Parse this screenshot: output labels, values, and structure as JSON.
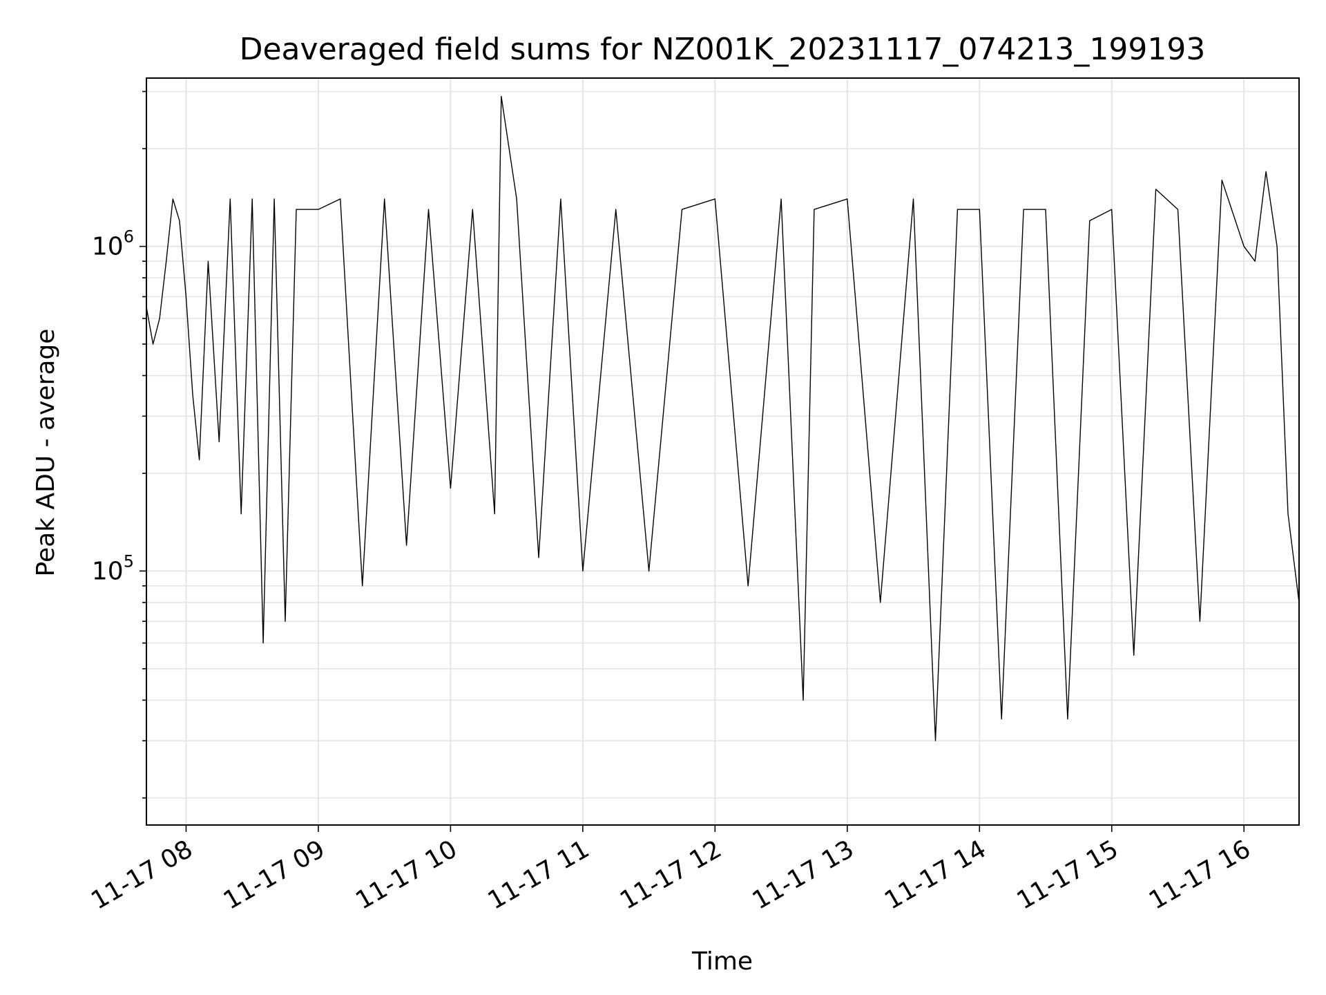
{
  "chart_data": {
    "type": "line",
    "title": "Deaveraged field sums for NZ001K_20231117_074213_199193",
    "xlabel": "Time",
    "ylabel": "Peak ADU - average",
    "x_range": [
      "2023-11-17 07:42",
      "2023-11-17 16:25"
    ],
    "ylim": [
      16500,
      3300000
    ],
    "y_scale": "log",
    "grid": true,
    "series_color": "#000000",
    "x_ticks": [
      {
        "value": "2023-11-17 08:00",
        "label": "11-17 08"
      },
      {
        "value": "2023-11-17 09:00",
        "label": "11-17 09"
      },
      {
        "value": "2023-11-17 10:00",
        "label": "11-17 10"
      },
      {
        "value": "2023-11-17 11:00",
        "label": "11-17 11"
      },
      {
        "value": "2023-11-17 12:00",
        "label": "11-17 12"
      },
      {
        "value": "2023-11-17 13:00",
        "label": "11-17 13"
      },
      {
        "value": "2023-11-17 14:00",
        "label": "11-17 14"
      },
      {
        "value": "2023-11-17 15:00",
        "label": "11-17 15"
      },
      {
        "value": "2023-11-17 16:00",
        "label": "11-17 16"
      }
    ],
    "y_ticks": [
      {
        "value": 100000,
        "base": "10",
        "exp": "5"
      },
      {
        "value": 1000000,
        "base": "10",
        "exp": "6"
      }
    ],
    "series": [
      {
        "x": [
          "2023-11-17 07:42",
          "2023-11-17 07:45",
          "2023-11-17 07:48",
          "2023-11-17 07:51",
          "2023-11-17 07:54",
          "2023-11-17 07:57",
          "2023-11-17 08:00",
          "2023-11-17 08:03",
          "2023-11-17 08:06",
          "2023-11-17 08:10",
          "2023-11-17 08:15",
          "2023-11-17 08:20",
          "2023-11-17 08:25",
          "2023-11-17 08:30",
          "2023-11-17 08:35",
          "2023-11-17 08:40",
          "2023-11-17 08:45",
          "2023-11-17 08:50",
          "2023-11-17 09:00",
          "2023-11-17 09:10",
          "2023-11-17 09:20",
          "2023-11-17 09:30",
          "2023-11-17 09:40",
          "2023-11-17 09:50",
          "2023-11-17 10:00",
          "2023-11-17 10:10",
          "2023-11-17 10:20",
          "2023-11-17 10:23",
          "2023-11-17 10:30",
          "2023-11-17 10:40",
          "2023-11-17 10:50",
          "2023-11-17 11:00",
          "2023-11-17 11:15",
          "2023-11-17 11:30",
          "2023-11-17 11:45",
          "2023-11-17 12:00",
          "2023-11-17 12:15",
          "2023-11-17 12:30",
          "2023-11-17 12:40",
          "2023-11-17 12:45",
          "2023-11-17 13:00",
          "2023-11-17 13:15",
          "2023-11-17 13:30",
          "2023-11-17 13:40",
          "2023-11-17 13:50",
          "2023-11-17 14:00",
          "2023-11-17 14:10",
          "2023-11-17 14:20",
          "2023-11-17 14:30",
          "2023-11-17 14:40",
          "2023-11-17 14:50",
          "2023-11-17 15:00",
          "2023-11-17 15:10",
          "2023-11-17 15:20",
          "2023-11-17 15:30",
          "2023-11-17 15:40",
          "2023-11-17 15:50",
          "2023-11-17 16:00",
          "2023-11-17 16:05",
          "2023-11-17 16:10",
          "2023-11-17 16:15",
          "2023-11-17 16:20",
          "2023-11-17 16:25"
        ],
        "y": [
          650000,
          500000,
          600000,
          900000,
          1400000,
          1200000,
          700000,
          350000,
          220000,
          900000,
          250000,
          1400000,
          150000,
          1400000,
          60000,
          1400000,
          70000,
          1300000,
          1300000,
          1400000,
          90000,
          1400000,
          120000,
          1300000,
          180000,
          1300000,
          150000,
          2900000,
          1400000,
          110000,
          1400000,
          100000,
          1300000,
          100000,
          1300000,
          1400000,
          90000,
          1400000,
          40000,
          1300000,
          1400000,
          80000,
          1400000,
          30000,
          1300000,
          1300000,
          35000,
          1300000,
          1300000,
          35000,
          1200000,
          1300000,
          55000,
          1500000,
          1300000,
          70000,
          1600000,
          1000000,
          900000,
          1700000,
          1000000,
          150000,
          80000
        ]
      }
    ]
  }
}
